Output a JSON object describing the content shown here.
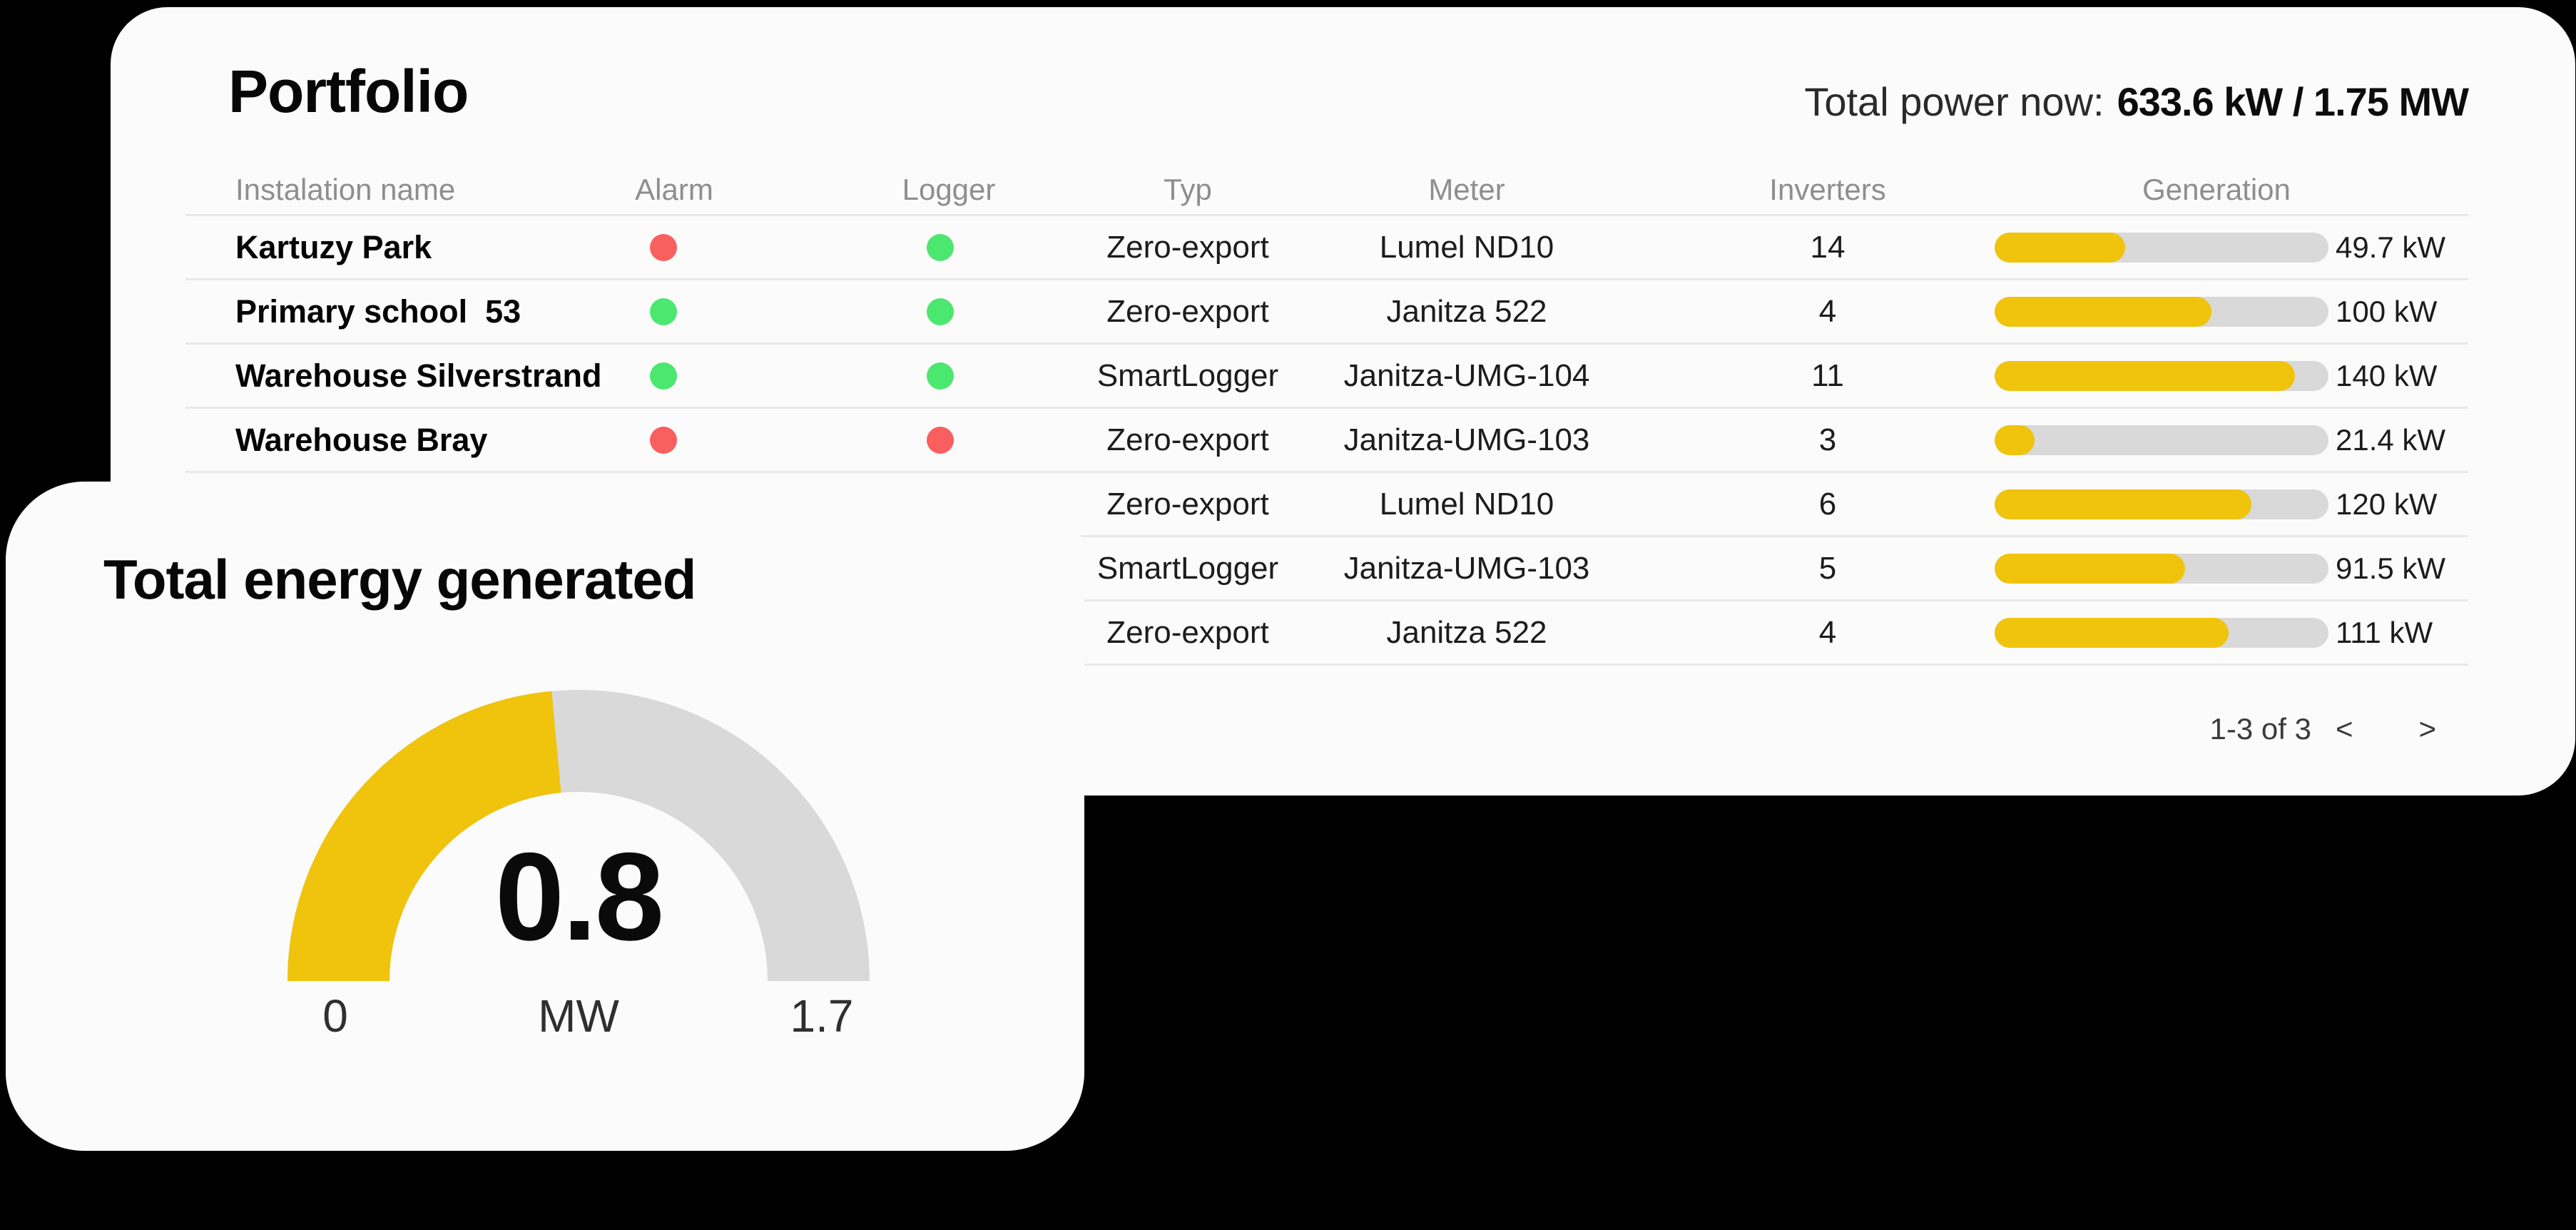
{
  "colors": {
    "background": "#000000",
    "card": "#FBFBFB",
    "accent_yellow": "#F0C30D",
    "bar_track": "#D9D9D9",
    "status_red": "#FA5F5F",
    "status_green": "#4CE76F",
    "header_gray": "#8E8E8E"
  },
  "portfolio": {
    "title": "Portfolio",
    "total_power_label": "Total power now:",
    "total_power_value": "633.6 kW / 1.75 MW",
    "columns": [
      "Instalation name",
      "Alarm",
      "Logger",
      "Typ",
      "Meter",
      "Inverters",
      "Generation"
    ],
    "rows": [
      {
        "name": "Kartuzy Park",
        "alarm": "red",
        "logger": "green",
        "typ": "Zero-export",
        "meter": "Lumel ND10",
        "inverters": "14",
        "generation": "49.7 kW",
        "fill_pct": 39
      },
      {
        "name": "Primary school  53",
        "alarm": "green",
        "logger": "green",
        "typ": "Zero-export",
        "meter": "Janitza 522",
        "inverters": "4",
        "generation": "100 kW",
        "fill_pct": 65
      },
      {
        "name": "Warehouse Silverstrand",
        "alarm": "green",
        "logger": "green",
        "typ": "SmartLogger",
        "meter": "Janitza-UMG-104",
        "inverters": "11",
        "generation": "140 kW",
        "fill_pct": 90
      },
      {
        "name": "Warehouse Bray",
        "alarm": "red",
        "logger": "red",
        "typ": "Zero-export",
        "meter": "Janitza-UMG-103",
        "inverters": "3",
        "generation": "21.4 kW",
        "fill_pct": 12
      },
      {
        "name": "",
        "alarm": null,
        "logger": null,
        "typ": "Zero-export",
        "meter": "Lumel ND10",
        "inverters": "6",
        "generation": "120 kW",
        "fill_pct": 77
      },
      {
        "name": "",
        "alarm": null,
        "logger": null,
        "typ": "SmartLogger",
        "meter": "Janitza-UMG-103",
        "inverters": "5",
        "generation": "91.5 kW",
        "fill_pct": 57
      },
      {
        "name": "",
        "alarm": null,
        "logger": null,
        "typ": "Zero-export",
        "meter": "Janitza 522",
        "inverters": "4",
        "generation": "111 kW",
        "fill_pct": 70
      }
    ],
    "pagination": {
      "label": "1-3 of 3",
      "prev": "<",
      "next": ">"
    }
  },
  "gauge_card": {
    "title": "Total energy generated",
    "value": "0.8",
    "unit": "MW",
    "min": "0",
    "max": "1.7"
  },
  "chart_data": [
    {
      "type": "gauge",
      "title": "Total energy generated",
      "value": 0.8,
      "min": 0,
      "max": 1.7,
      "unit": "MW",
      "fill_color": "#F0C30D",
      "track_color": "#D9D9D9"
    },
    {
      "type": "bar",
      "title": "Generation",
      "categories": [
        "Kartuzy Park",
        "Primary school  53",
        "Warehouse Silverstrand",
        "Warehouse Bray",
        "",
        "",
        ""
      ],
      "values": [
        49.7,
        100,
        140,
        21.4,
        120,
        91.5,
        111
      ],
      "unit": "kW",
      "fill_pct": [
        39,
        65,
        90,
        12,
        77,
        57,
        70
      ],
      "xlabel": "",
      "ylabel": "Generation"
    }
  ]
}
